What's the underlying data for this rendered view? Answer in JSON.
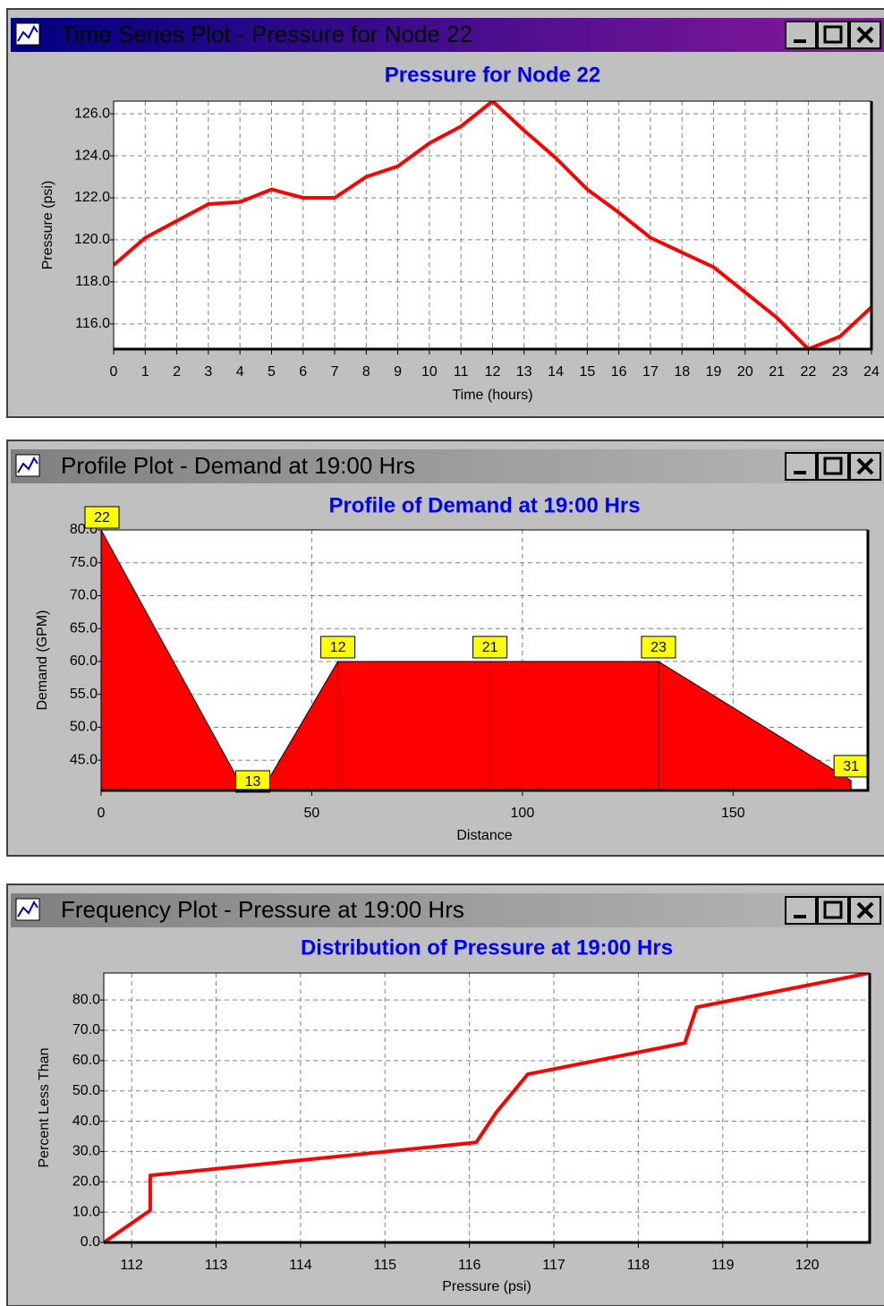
{
  "windows": [
    {
      "title": "Time Series Plot - Pressure for Node 22",
      "active": true
    },
    {
      "title": "Profile Plot - Demand at 19:00 Hrs",
      "active": false
    },
    {
      "title": "Frequency Plot - Pressure at 19:00 Hrs",
      "active": false
    }
  ],
  "chart_data": [
    {
      "type": "line",
      "title": "Pressure for Node 22",
      "xlabel": "Time (hours)",
      "ylabel": "Pressure (psi)",
      "x": [
        0,
        1,
        2,
        3,
        4,
        5,
        6,
        7,
        8,
        9,
        10,
        11,
        12,
        13,
        14,
        15,
        16,
        17,
        18,
        19,
        20,
        21,
        22,
        23,
        24
      ],
      "values": [
        118.8,
        120.1,
        120.9,
        121.7,
        121.8,
        122.4,
        122.0,
        122.0,
        123.0,
        123.5,
        124.6,
        125.4,
        126.6,
        125.2,
        123.9,
        122.4,
        121.3,
        120.1,
        119.4,
        118.7,
        117.5,
        116.3,
        114.8,
        115.4,
        116.8
      ],
      "color": "#ff0000",
      "xlim": [
        0,
        24
      ],
      "ylim": [
        114.8,
        126.6
      ],
      "xticks": [
        0,
        1,
        2,
        3,
        4,
        5,
        6,
        7,
        8,
        9,
        10,
        11,
        12,
        13,
        14,
        15,
        16,
        17,
        18,
        19,
        20,
        21,
        22,
        23,
        24
      ],
      "yticks": [
        {
          "value": 116,
          "label": "116.0"
        },
        {
          "value": 118,
          "label": "118.0"
        },
        {
          "value": 120,
          "label": "120.0"
        },
        {
          "value": 122,
          "label": "122.0"
        },
        {
          "value": 124,
          "label": "124.0"
        },
        {
          "value": 126,
          "label": "126.0"
        }
      ],
      "grid": true
    },
    {
      "type": "area",
      "title": "Profile of Demand at 19:00 Hrs",
      "xlabel": "Distance",
      "ylabel": "Demand (GPM)",
      "x": [
        0,
        36,
        56.2,
        92.3,
        132.3,
        178
      ],
      "values": [
        80,
        38,
        60,
        60,
        60,
        41.9
      ],
      "point_labels": [
        "22",
        "13",
        "12",
        "21",
        "23",
        "31"
      ],
      "color": "#ff0000",
      "xlim": [
        0,
        182
      ],
      "ylim": [
        40.4,
        80
      ],
      "xticks": [
        0,
        50,
        100,
        150
      ],
      "yticks": [
        {
          "value": 45,
          "label": "45.0"
        },
        {
          "value": 50,
          "label": "50.0"
        },
        {
          "value": 55,
          "label": "55.0"
        },
        {
          "value": 60,
          "label": "60.0"
        },
        {
          "value": 65,
          "label": "65.0"
        },
        {
          "value": 70,
          "label": "70.0"
        },
        {
          "value": 75,
          "label": "75.0"
        },
        {
          "value": 80,
          "label": "80.0"
        }
      ],
      "grid": true
    },
    {
      "type": "line",
      "title": "Distribution of Pressure at 19:00 Hrs",
      "xlabel": "Pressure (psi)",
      "ylabel": "Percent Less Than",
      "x": [
        111.67,
        112.22,
        112.22,
        116.08,
        116.32,
        116.69,
        118.55,
        118.69,
        120.74
      ],
      "values": [
        0,
        10.6,
        22.1,
        33,
        43,
        55.5,
        65.8,
        77.6,
        88.9
      ],
      "color": "#ff0000",
      "xlim": [
        111.67,
        120.74
      ],
      "ylim": [
        0,
        88.9
      ],
      "xticks": [
        112,
        113,
        114,
        115,
        116,
        117,
        118,
        119,
        120
      ],
      "yticks": [
        {
          "value": 0,
          "label": "0.0"
        },
        {
          "value": 10,
          "label": "10.0"
        },
        {
          "value": 20,
          "label": "20.0"
        },
        {
          "value": 30,
          "label": "30.0"
        },
        {
          "value": 40,
          "label": "40.0"
        },
        {
          "value": 50,
          "label": "50.0"
        },
        {
          "value": 60,
          "label": "60.0"
        },
        {
          "value": 70,
          "label": "70.0"
        },
        {
          "value": 80,
          "label": "80.0"
        }
      ],
      "grid": true
    }
  ]
}
